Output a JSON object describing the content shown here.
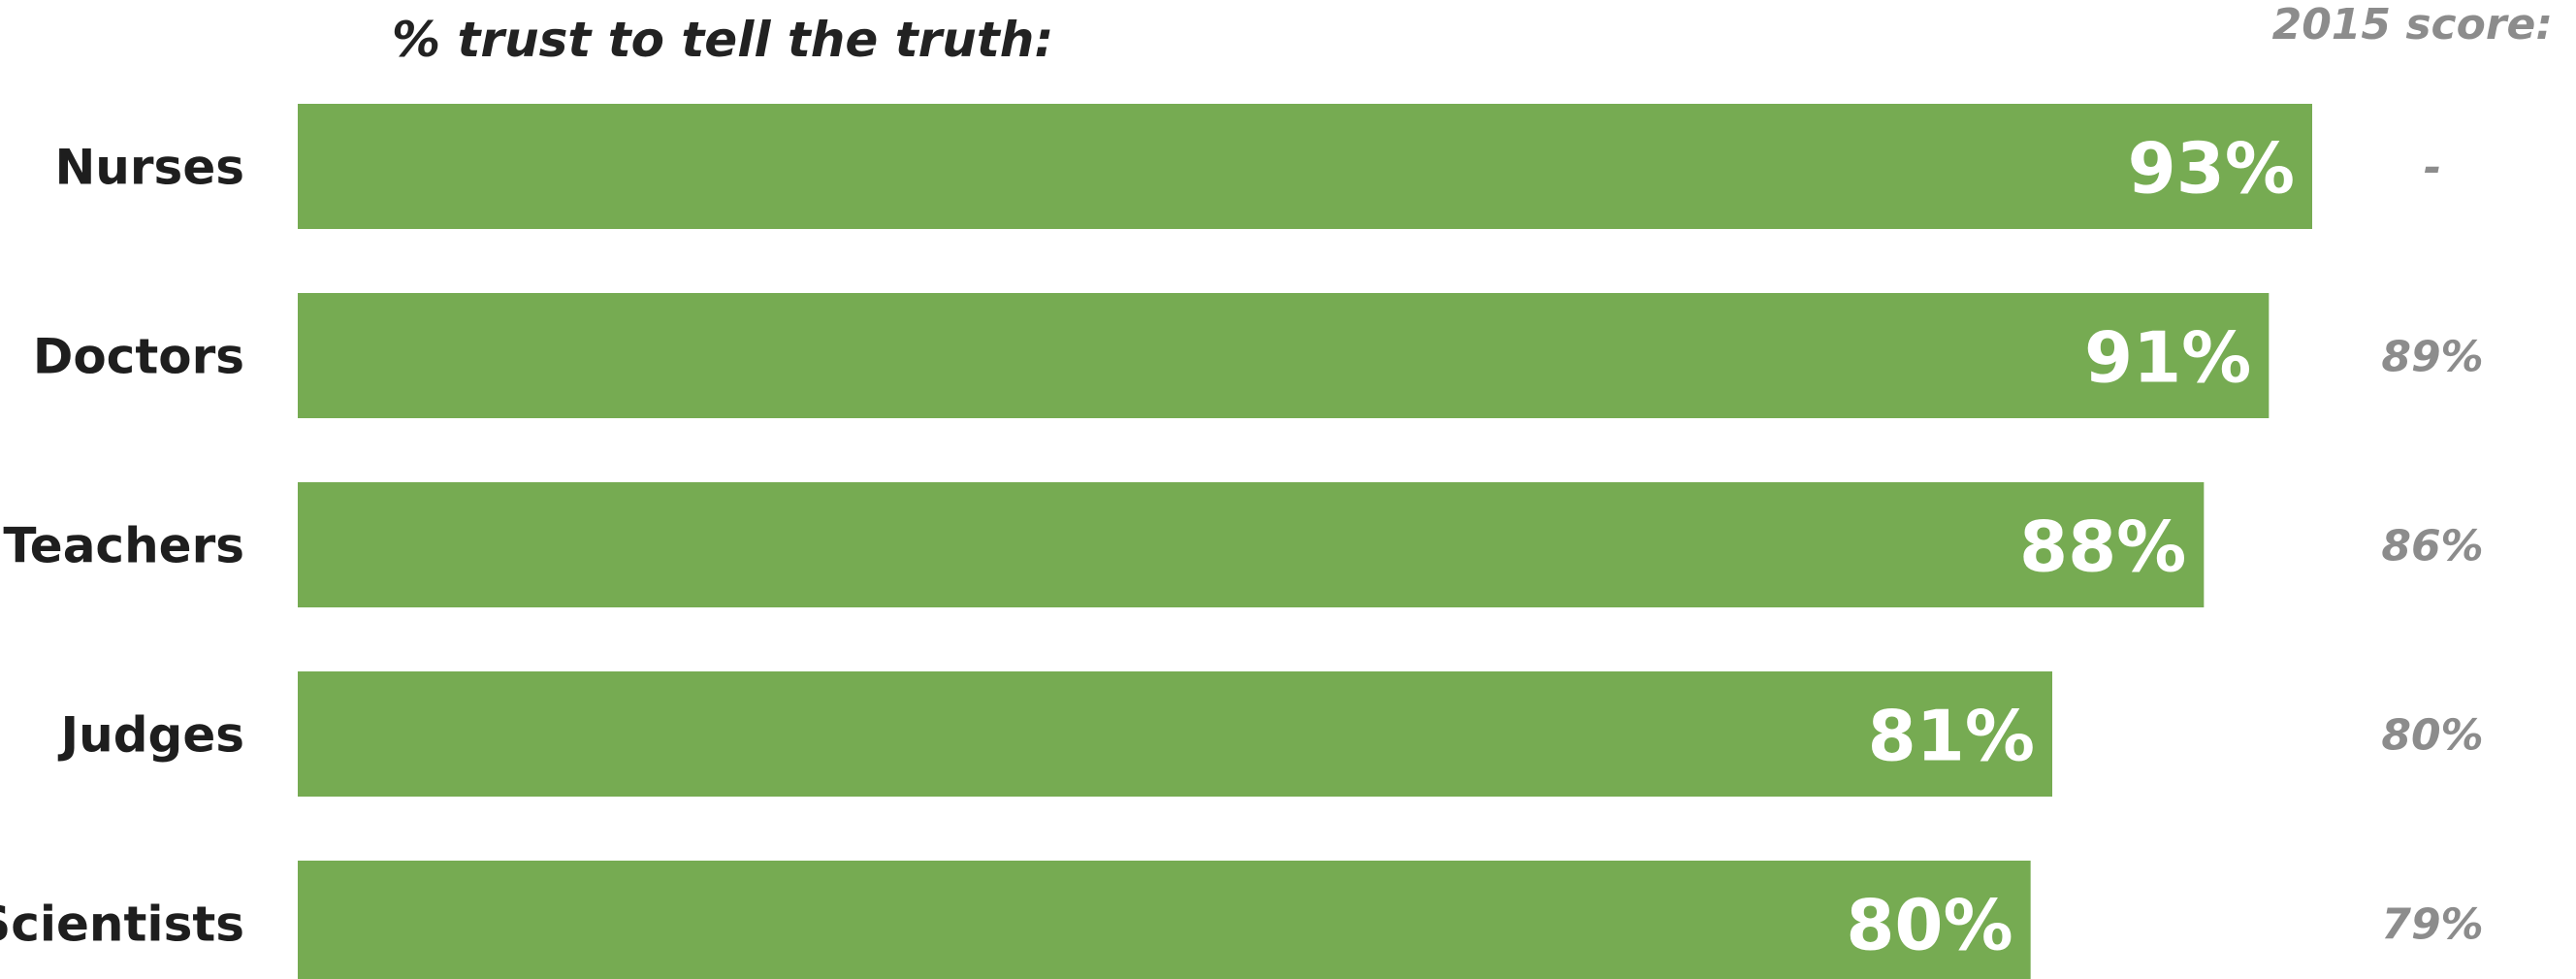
{
  "chart_data": {
    "type": "bar",
    "orientation": "horizontal",
    "title": "% trust to tell the truth:",
    "categories": [
      "Nurses",
      "Doctors",
      "Teachers",
      "Judges",
      "Scientists"
    ],
    "values": [
      93,
      91,
      88,
      81,
      80
    ],
    "value_labels": [
      "93%",
      "91%",
      "88%",
      "81%",
      "80%"
    ],
    "comparison_header": "2015 score:",
    "comparison_labels": [
      "-",
      "89%",
      "86%",
      "80%",
      "79%"
    ],
    "bar_color": "#76ab52",
    "grid": false,
    "legend": "none"
  }
}
